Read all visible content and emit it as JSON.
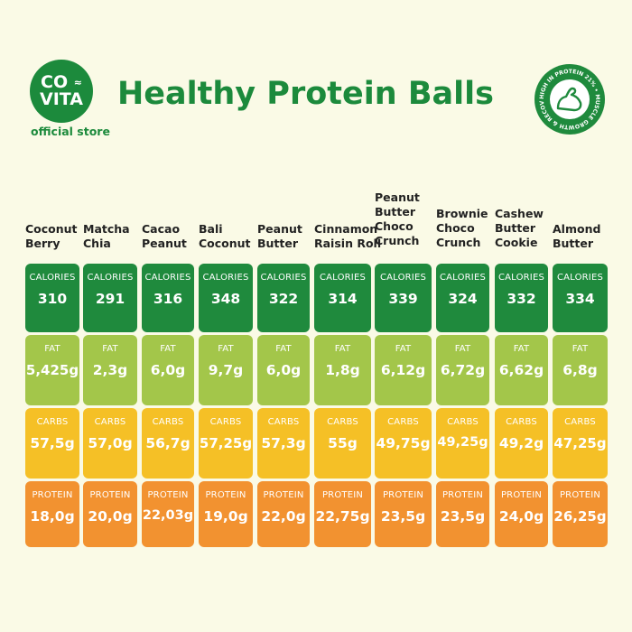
{
  "brand": {
    "logo_line1": "CO",
    "logo_waves": "≈",
    "logo_line2": "VITA",
    "store": "official store"
  },
  "title": "Healthy Protein Balls",
  "badge": {
    "text": "HIGH IN PROTEIN 21% • MUSCLE GROWTH & RECOVERY •",
    "icon": "flexed-arm-icon"
  },
  "labels": {
    "calories": "CALORIES",
    "fat": "FAT",
    "carbs": "CARBS",
    "protein": "PROTEIN"
  },
  "colors": {
    "green": "#1f8a3d",
    "lime": "#a3c64a",
    "yellow": "#f5c026",
    "orange": "#f29230",
    "background": "#fafae6"
  },
  "products": [
    {
      "name": "Coconut\nBerry",
      "calories": "310",
      "fat": "5,425g",
      "carbs": "57,5g",
      "protein": "18,0g"
    },
    {
      "name": "Matcha\nChia",
      "calories": "291",
      "fat": "2,3g",
      "carbs": "57,0g",
      "protein": "20,0g"
    },
    {
      "name": "Cacao\nPeanut",
      "calories": "316",
      "fat": "6,0g",
      "carbs": "56,7g",
      "protein": "22,03g"
    },
    {
      "name": "Bali\nCoconut",
      "calories": "348",
      "fat": "9,7g",
      "carbs": "57,25g",
      "protein": "19,0g"
    },
    {
      "name": "Peanut\nButter",
      "calories": "322",
      "fat": "6,0g",
      "carbs": "57,3g",
      "protein": "22,0g"
    },
    {
      "name": "Cinnamon\nRaisin Roll",
      "calories": "314",
      "fat": "1,8g",
      "carbs": "55g",
      "protein": "22,75g"
    },
    {
      "name": "Peanut\nButter\nChoco\nCrunch",
      "calories": "339",
      "fat": "6,12g",
      "carbs": "49,75g",
      "protein": "23,5g"
    },
    {
      "name": "Brownie\nChoco\nCrunch",
      "calories": "324",
      "fat": "6,72g",
      "carbs": "49,25g",
      "protein": "23,5g"
    },
    {
      "name": "Cashew\nButter\nCookie",
      "calories": "332",
      "fat": "6,62g",
      "carbs": "49,2g",
      "protein": "24,0g"
    },
    {
      "name": "Almond\nButter",
      "calories": "334",
      "fat": "6,8g",
      "carbs": "47,25g",
      "protein": "26,25g"
    }
  ]
}
